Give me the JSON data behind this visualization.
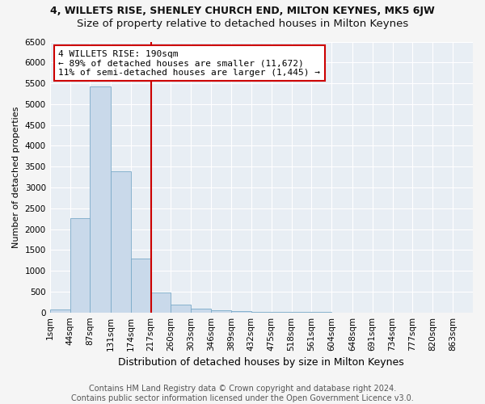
{
  "title1": "4, WILLETS RISE, SHENLEY CHURCH END, MILTON KEYNES, MK5 6JW",
  "title2": "Size of property relative to detached houses in Milton Keynes",
  "xlabel": "Distribution of detached houses by size in Milton Keynes",
  "ylabel": "Number of detached properties",
  "footer1": "Contains HM Land Registry data © Crown copyright and database right 2024.",
  "footer2": "Contains public sector information licensed under the Open Government Licence v3.0.",
  "annotation_line1": "4 WILLETS RISE: 190sqm",
  "annotation_line2": "← 89% of detached houses are smaller (11,672)",
  "annotation_line3": "11% of semi-detached houses are larger (1,445) →",
  "bar_color": "#c9d9ea",
  "bar_edgecolor": "#7aaac8",
  "vline_color": "#cc0000",
  "vline_x_index": 4,
  "categories": [
    "1sqm",
    "44sqm",
    "87sqm",
    "131sqm",
    "174sqm",
    "217sqm",
    "260sqm",
    "303sqm",
    "346sqm",
    "389sqm",
    "432sqm",
    "475sqm",
    "518sqm",
    "561sqm",
    "604sqm",
    "648sqm",
    "691sqm",
    "734sqm",
    "777sqm",
    "820sqm",
    "863sqm"
  ],
  "bin_edges": [
    1,
    44,
    87,
    131,
    174,
    217,
    260,
    303,
    346,
    389,
    432,
    475,
    518,
    561,
    604,
    648,
    691,
    734,
    777,
    820,
    863,
    906
  ],
  "values": [
    75,
    2260,
    5430,
    3380,
    1300,
    480,
    195,
    100,
    60,
    40,
    20,
    15,
    10,
    5,
    3,
    2,
    1,
    1,
    0,
    0,
    0
  ],
  "ylim": [
    0,
    6500
  ],
  "yticks": [
    0,
    500,
    1000,
    1500,
    2000,
    2500,
    3000,
    3500,
    4000,
    4500,
    5000,
    5500,
    6000,
    6500
  ],
  "bg_color": "#e8eef4",
  "grid_color": "#ffffff",
  "fig_bg": "#f5f5f5",
  "title1_fontsize": 9,
  "title2_fontsize": 9.5,
  "ann_fontsize": 8,
  "ylabel_fontsize": 8,
  "xlabel_fontsize": 9,
  "tick_fontsize": 7.5,
  "footer_fontsize": 7
}
